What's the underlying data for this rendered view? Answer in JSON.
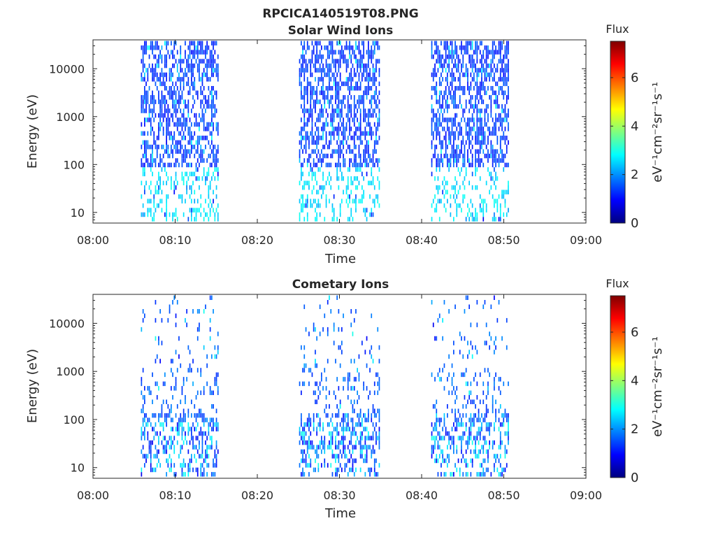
{
  "figure_title": "RPCICA140519T08.PNG",
  "colors": {
    "colormap": "jet",
    "colormap_stops": [
      "#00007f",
      "#0000ff",
      "#007fff",
      "#00ffff",
      "#7fff7f",
      "#ffff00",
      "#ff7f00",
      "#ff0000",
      "#7f0000"
    ]
  },
  "chart_data": [
    {
      "type": "heatmap",
      "title": "Solar Wind Ions",
      "xlabel": "Time",
      "ylabel": "Energy (eV)",
      "x_ticks": [
        "08:00",
        "08:10",
        "08:20",
        "08:30",
        "08:40",
        "08:50",
        "09:00"
      ],
      "xlim": [
        "08:00",
        "09:00"
      ],
      "y_scale": "log",
      "y_ticks": [
        10,
        100,
        1000,
        10000
      ],
      "y_tick_labels": [
        "10",
        "100",
        "1000",
        "10000"
      ],
      "ylim": [
        6,
        40000
      ],
      "colorbar": {
        "title": "Flux",
        "label": "eV⁻¹cm⁻²sr⁻¹s⁻¹",
        "range": [
          0,
          7.5
        ],
        "ticks": [
          0,
          2,
          4,
          6
        ],
        "tick_labels": [
          "0",
          "2",
          "4",
          "6"
        ]
      },
      "active_intervals": [
        [
          "08:05:50",
          "08:15:10"
        ],
        [
          "08:25:05",
          "08:34:50"
        ],
        [
          "08:41:10",
          "08:50:30"
        ]
      ],
      "value_range": [
        0.8,
        3.0
      ],
      "high_energy_values": [
        1.0,
        1.7
      ],
      "low_energy_values": [
        2.3,
        3.0
      ],
      "fill_fraction": 0.55
    },
    {
      "type": "heatmap",
      "title": "Cometary Ions",
      "xlabel": "Time",
      "ylabel": "Energy (eV)",
      "x_ticks": [
        "08:00",
        "08:10",
        "08:20",
        "08:30",
        "08:40",
        "08:50",
        "09:00"
      ],
      "xlim": [
        "08:00",
        "09:00"
      ],
      "y_scale": "log",
      "y_ticks": [
        10,
        100,
        1000,
        10000
      ],
      "y_tick_labels": [
        "10",
        "100",
        "1000",
        "10000"
      ],
      "ylim": [
        6,
        40000
      ],
      "colorbar": {
        "title": "Flux",
        "label": "eV⁻¹cm⁻²sr⁻¹s⁻¹",
        "range": [
          0,
          7.5
        ],
        "ticks": [
          0,
          2,
          4,
          6
        ],
        "tick_labels": [
          "0",
          "2",
          "4",
          "6"
        ]
      },
      "active_intervals": [
        [
          "08:05:50",
          "08:15:10"
        ],
        [
          "08:25:05",
          "08:34:50"
        ],
        [
          "08:41:10",
          "08:50:30"
        ]
      ],
      "value_range": [
        0.8,
        3.0
      ],
      "high_energy_values": [
        1.2,
        2.0
      ],
      "low_energy_values": [
        0.8,
        3.0
      ],
      "fill_fraction": 0.2
    }
  ]
}
